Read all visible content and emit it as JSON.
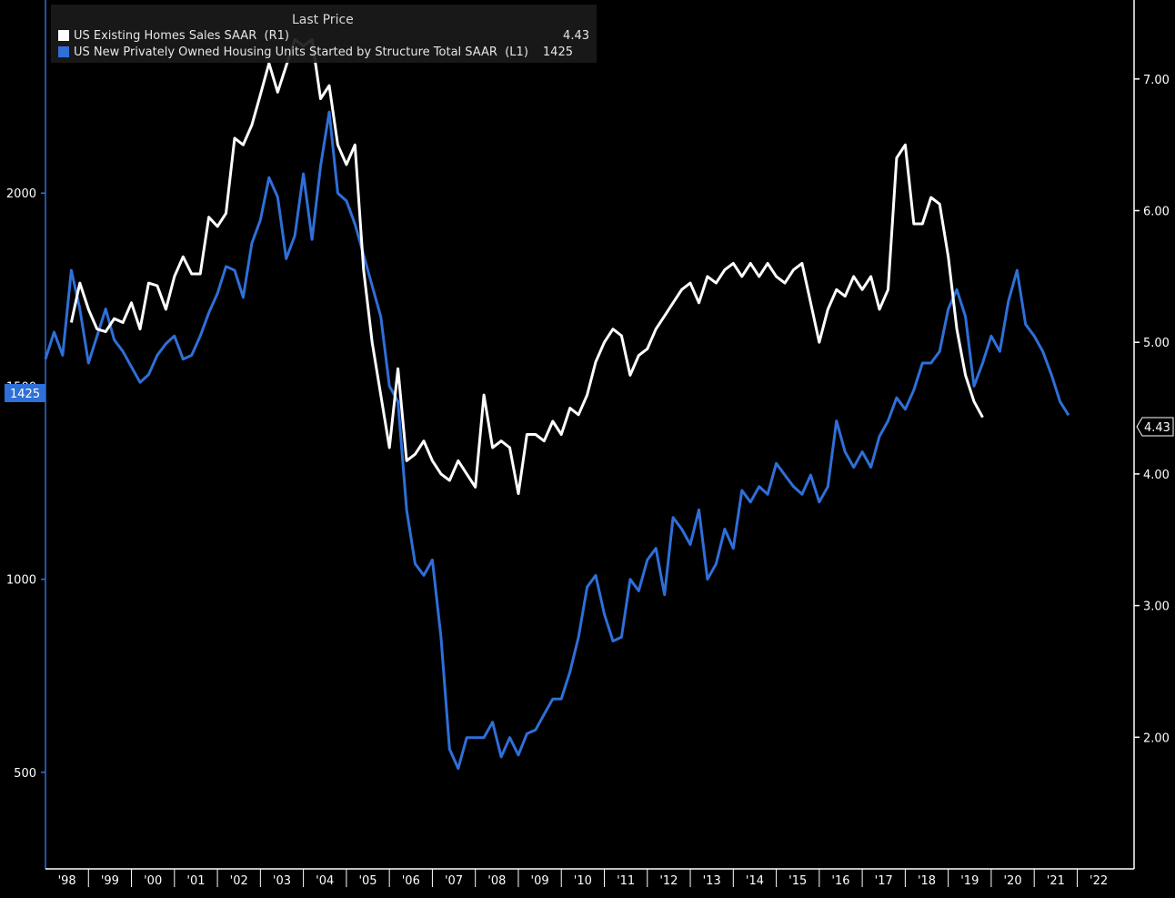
{
  "legend": {
    "header": "Last Price",
    "entries": [
      {
        "label": "US Existing Homes Sales SAAR  (R1)",
        "value": "4.43",
        "color": "#ffffff"
      },
      {
        "label": "US New Privately Owned Housing Units Started by Structure Total SAAR  (L1)",
        "value": "1425",
        "color": "#2f6fd8"
      }
    ]
  },
  "chart_data": {
    "type": "line",
    "x_tick_labels": [
      "'98",
      "'99",
      "'00",
      "'01",
      "'02",
      "'03",
      "'04",
      "'05",
      "'06",
      "'07",
      "'08",
      "'09",
      "'10",
      "'11",
      "'12",
      "'13",
      "'14",
      "'15",
      "'16",
      "'17",
      "'18",
      "'19",
      "'20",
      "'21",
      "'22"
    ],
    "x_range": [
      1998.0,
      2022.9
    ],
    "left_axis": {
      "ticks": [
        "500",
        "1000",
        "1500",
        "2000"
      ],
      "tick_values": [
        500,
        1000,
        1500,
        2000
      ],
      "range": [
        250,
        2500
      ],
      "last_value_label": "1425",
      "color": "#2f6fd8"
    },
    "right_axis": {
      "ticks": [
        "2.00",
        "3.00",
        "4.00",
        "5.00",
        "6.00",
        "7.00"
      ],
      "tick_values": [
        2,
        3,
        4,
        5,
        6,
        7
      ],
      "range": [
        1.0,
        7.6
      ],
      "last_value_label": "4.43",
      "color": "#ffffff"
    },
    "grid": false,
    "legend_position": "top-left",
    "series": [
      {
        "name": "US New Privately Owned Housing Units Started by Structure Total SAAR  (L1)",
        "axis": "left",
        "color": "#2f6fd8",
        "points": [
          [
            1998.0,
            1570
          ],
          [
            1998.2,
            1640
          ],
          [
            1998.4,
            1580
          ],
          [
            1998.6,
            1800
          ],
          [
            1998.8,
            1700
          ],
          [
            1999.0,
            1560
          ],
          [
            1999.2,
            1630
          ],
          [
            1999.4,
            1700
          ],
          [
            1999.6,
            1620
          ],
          [
            1999.8,
            1590
          ],
          [
            2000.0,
            1550
          ],
          [
            2000.2,
            1510
          ],
          [
            2000.4,
            1530
          ],
          [
            2000.6,
            1580
          ],
          [
            2000.8,
            1610
          ],
          [
            2001.0,
            1630
          ],
          [
            2001.2,
            1570
          ],
          [
            2001.4,
            1580
          ],
          [
            2001.6,
            1630
          ],
          [
            2001.8,
            1690
          ],
          [
            2002.0,
            1740
          ],
          [
            2002.2,
            1810
          ],
          [
            2002.4,
            1800
          ],
          [
            2002.6,
            1730
          ],
          [
            2002.8,
            1870
          ],
          [
            2003.0,
            1930
          ],
          [
            2003.2,
            2040
          ],
          [
            2003.4,
            1990
          ],
          [
            2003.6,
            1830
          ],
          [
            2003.8,
            1890
          ],
          [
            2004.0,
            2050
          ],
          [
            2004.2,
            1880
          ],
          [
            2004.4,
            2070
          ],
          [
            2004.6,
            2210
          ],
          [
            2004.8,
            2000
          ],
          [
            2005.0,
            1980
          ],
          [
            2005.2,
            1920
          ],
          [
            2005.4,
            1840
          ],
          [
            2005.6,
            1760
          ],
          [
            2005.8,
            1680
          ],
          [
            2006.0,
            1500
          ],
          [
            2006.2,
            1460
          ],
          [
            2006.4,
            1180
          ],
          [
            2006.6,
            1040
          ],
          [
            2006.8,
            1010
          ],
          [
            2007.0,
            1050
          ],
          [
            2007.2,
            850
          ],
          [
            2007.4,
            560
          ],
          [
            2007.6,
            510
          ],
          [
            2007.8,
            590
          ],
          [
            2008.0,
            590
          ],
          [
            2008.2,
            590
          ],
          [
            2008.4,
            630
          ],
          [
            2008.6,
            540
          ],
          [
            2008.8,
            590
          ],
          [
            2009.0,
            545
          ],
          [
            2009.2,
            600
          ],
          [
            2009.4,
            610
          ],
          [
            2009.6,
            650
          ],
          [
            2009.8,
            690
          ],
          [
            2010.0,
            690
          ],
          [
            2010.2,
            760
          ],
          [
            2010.4,
            850
          ],
          [
            2010.6,
            980
          ],
          [
            2010.8,
            1010
          ],
          [
            2011.0,
            910
          ],
          [
            2011.2,
            840
          ],
          [
            2011.4,
            850
          ],
          [
            2011.6,
            1000
          ],
          [
            2011.8,
            970
          ],
          [
            2012.0,
            1050
          ],
          [
            2012.2,
            1080
          ],
          [
            2012.4,
            960
          ],
          [
            2012.6,
            1160
          ],
          [
            2012.8,
            1130
          ],
          [
            2013.0,
            1090
          ],
          [
            2013.2,
            1180
          ],
          [
            2013.4,
            1000
          ],
          [
            2013.6,
            1040
          ],
          [
            2013.8,
            1130
          ],
          [
            2014.0,
            1080
          ],
          [
            2014.2,
            1230
          ],
          [
            2014.4,
            1200
          ],
          [
            2014.6,
            1240
          ],
          [
            2014.8,
            1220
          ],
          [
            2015.0,
            1300
          ],
          [
            2015.2,
            1270
          ],
          [
            2015.4,
            1240
          ],
          [
            2015.6,
            1220
          ],
          [
            2015.8,
            1270
          ],
          [
            2016.0,
            1200
          ],
          [
            2016.2,
            1240
          ],
          [
            2016.4,
            1410
          ],
          [
            2016.6,
            1330
          ],
          [
            2016.8,
            1290
          ],
          [
            2017.0,
            1330
          ],
          [
            2017.2,
            1290
          ],
          [
            2017.4,
            1370
          ],
          [
            2017.6,
            1410
          ],
          [
            2017.8,
            1470
          ],
          [
            2018.0,
            1440
          ],
          [
            2018.2,
            1490
          ],
          [
            2018.4,
            1560
          ],
          [
            2018.6,
            1560
          ],
          [
            2018.8,
            1590
          ],
          [
            2019.0,
            1700
          ],
          [
            2019.2,
            1750
          ],
          [
            2019.4,
            1680
          ],
          [
            2019.6,
            1500
          ],
          [
            2019.8,
            1560
          ],
          [
            2020.0,
            1630
          ],
          [
            2020.2,
            1590
          ],
          [
            2020.4,
            1720
          ],
          [
            2020.6,
            1800
          ],
          [
            2020.8,
            1660
          ],
          [
            2021.0,
            1630
          ],
          [
            2021.2,
            1590
          ],
          [
            2021.4,
            1530
          ],
          [
            2021.6,
            1460
          ],
          [
            2021.8,
            1425
          ]
        ]
      },
      {
        "name": "US Existing Homes Sales SAAR  (R1)",
        "axis": "right",
        "color": "#ffffff",
        "points": [
          [
            1998.6,
            5.15
          ],
          [
            1998.8,
            5.45
          ],
          [
            1999.0,
            5.25
          ],
          [
            1999.2,
            5.1
          ],
          [
            1999.4,
            5.08
          ],
          [
            1999.6,
            5.18
          ],
          [
            1999.8,
            5.15
          ],
          [
            2000.0,
            5.3
          ],
          [
            2000.2,
            5.1
          ],
          [
            2000.4,
            5.45
          ],
          [
            2000.6,
            5.43
          ],
          [
            2000.8,
            5.25
          ],
          [
            2001.0,
            5.5
          ],
          [
            2001.2,
            5.65
          ],
          [
            2001.4,
            5.52
          ],
          [
            2001.6,
            5.52
          ],
          [
            2001.8,
            5.95
          ],
          [
            2002.0,
            5.88
          ],
          [
            2002.2,
            5.98
          ],
          [
            2002.4,
            6.55
          ],
          [
            2002.6,
            6.5
          ],
          [
            2002.8,
            6.65
          ],
          [
            2003.0,
            6.88
          ],
          [
            2003.2,
            7.12
          ],
          [
            2003.4,
            6.9
          ],
          [
            2003.6,
            7.1
          ],
          [
            2003.8,
            7.3
          ],
          [
            2004.0,
            7.25
          ],
          [
            2004.2,
            7.3
          ],
          [
            2004.4,
            6.85
          ],
          [
            2004.6,
            6.95
          ],
          [
            2004.8,
            6.5
          ],
          [
            2005.0,
            6.35
          ],
          [
            2005.2,
            6.5
          ],
          [
            2005.4,
            5.55
          ],
          [
            2005.6,
            5.0
          ],
          [
            2005.8,
            4.6
          ],
          [
            2006.0,
            4.2
          ],
          [
            2006.2,
            4.8
          ],
          [
            2006.4,
            4.1
          ],
          [
            2006.6,
            4.15
          ],
          [
            2006.8,
            4.25
          ],
          [
            2007.0,
            4.1
          ],
          [
            2007.2,
            4.0
          ],
          [
            2007.4,
            3.95
          ],
          [
            2007.6,
            4.1
          ],
          [
            2007.8,
            4.0
          ],
          [
            2008.0,
            3.9
          ],
          [
            2008.2,
            4.6
          ],
          [
            2008.4,
            4.2
          ],
          [
            2008.6,
            4.25
          ],
          [
            2008.8,
            4.2
          ],
          [
            2009.0,
            3.85
          ],
          [
            2009.2,
            4.3
          ],
          [
            2009.4,
            4.3
          ],
          [
            2009.6,
            4.25
          ],
          [
            2009.8,
            4.4
          ],
          [
            2010.0,
            4.3
          ],
          [
            2010.2,
            4.5
          ],
          [
            2010.4,
            4.45
          ],
          [
            2010.6,
            4.6
          ],
          [
            2010.8,
            4.85
          ],
          [
            2011.0,
            5.0
          ],
          [
            2011.2,
            5.1
          ],
          [
            2011.4,
            5.05
          ],
          [
            2011.6,
            4.75
          ],
          [
            2011.8,
            4.9
          ],
          [
            2012.0,
            4.95
          ],
          [
            2012.2,
            5.1
          ],
          [
            2012.4,
            5.2
          ],
          [
            2012.6,
            5.3
          ],
          [
            2012.8,
            5.4
          ],
          [
            2013.0,
            5.45
          ],
          [
            2013.2,
            5.3
          ],
          [
            2013.4,
            5.5
          ],
          [
            2013.6,
            5.45
          ],
          [
            2013.8,
            5.55
          ],
          [
            2014.0,
            5.6
          ],
          [
            2014.2,
            5.5
          ],
          [
            2014.4,
            5.6
          ],
          [
            2014.6,
            5.5
          ],
          [
            2014.8,
            5.6
          ],
          [
            2015.0,
            5.5
          ],
          [
            2015.2,
            5.45
          ],
          [
            2015.4,
            5.55
          ],
          [
            2015.6,
            5.6
          ],
          [
            2015.8,
            5.3
          ],
          [
            2016.0,
            5.0
          ],
          [
            2016.2,
            5.25
          ],
          [
            2016.4,
            5.4
          ],
          [
            2016.6,
            5.35
          ],
          [
            2016.8,
            5.5
          ],
          [
            2017.0,
            5.4
          ],
          [
            2017.2,
            5.5
          ],
          [
            2017.4,
            5.25
          ],
          [
            2017.6,
            5.4
          ],
          [
            2017.8,
            6.4
          ],
          [
            2018.0,
            6.5
          ],
          [
            2018.2,
            5.9
          ],
          [
            2018.4,
            5.9
          ],
          [
            2018.6,
            6.1
          ],
          [
            2018.8,
            6.05
          ],
          [
            2019.0,
            5.65
          ],
          [
            2019.2,
            5.1
          ],
          [
            2019.4,
            4.75
          ],
          [
            2019.6,
            4.55
          ],
          [
            2019.8,
            4.43
          ]
        ]
      }
    ]
  }
}
